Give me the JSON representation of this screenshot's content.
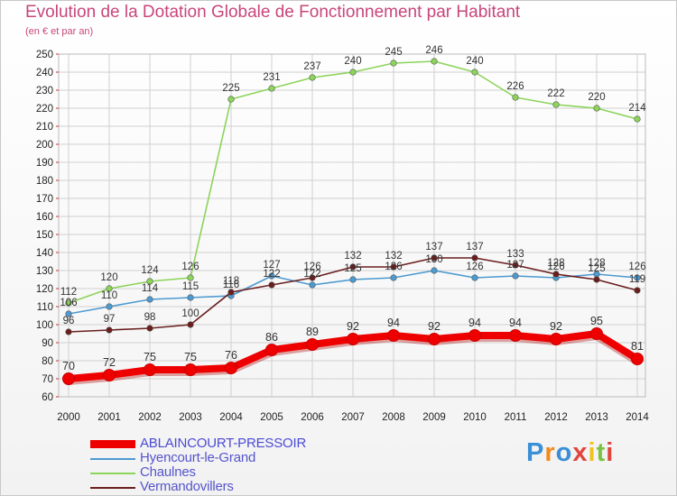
{
  "chart_data": {
    "type": "line",
    "title": "Evolution de la Dotation Globale de Fonctionnement par Habitant",
    "subtitle": "(en € et par an)",
    "x": [
      "2000",
      "2001",
      "2002",
      "2003",
      "2004",
      "2005",
      "2006",
      "2007",
      "2008",
      "2009",
      "2010",
      "2011",
      "2012",
      "2013",
      "2014"
    ],
    "ylim": [
      60,
      250
    ],
    "yticks": [
      60,
      70,
      80,
      90,
      100,
      110,
      120,
      130,
      140,
      150,
      160,
      170,
      180,
      190,
      200,
      210,
      220,
      230,
      240,
      250
    ],
    "grid": true,
    "legend_position": "bottom-left",
    "series": [
      {
        "name": "ABLAINCOURT-PRESSOIR",
        "color": "#ee0000",
        "emphasis": true,
        "values": [
          70,
          72,
          75,
          75,
          76,
          86,
          89,
          92,
          94,
          92,
          94,
          94,
          92,
          95,
          81
        ]
      },
      {
        "name": "Hyencourt-le-Grand",
        "color": "#4d9ad0",
        "values": [
          106,
          110,
          114,
          115,
          116,
          127,
          122,
          125,
          126,
          130,
          126,
          127,
          126,
          128,
          126
        ]
      },
      {
        "name": "Chaulnes",
        "color": "#8cd45a",
        "values": [
          112,
          120,
          124,
          126,
          225,
          231,
          237,
          240,
          245,
          246,
          240,
          226,
          222,
          220,
          214
        ]
      },
      {
        "name": "Vermandovillers",
        "color": "#6b1e1e",
        "values": [
          96,
          97,
          98,
          100,
          118,
          122,
          126,
          132,
          132,
          137,
          137,
          133,
          128,
          125,
          119
        ]
      }
    ]
  },
  "logo": {
    "text": "Proxiti",
    "letters": [
      "P",
      "r",
      "o",
      "x",
      "i",
      "t",
      "i"
    ]
  },
  "colors": {
    "title": "#c8467a",
    "grid": "#d0d0d0",
    "axis_ticks": "#cc3333"
  }
}
